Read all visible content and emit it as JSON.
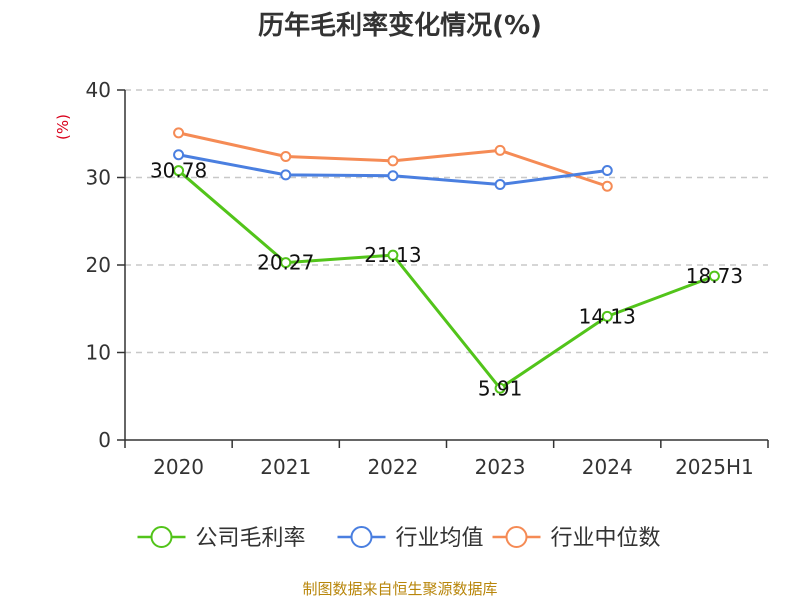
{
  "chart_data": {
    "type": "line",
    "title": "历年毛利率变化情况(%)",
    "ylabel": "(%)",
    "xlabel": "",
    "categories": [
      "2020",
      "2021",
      "2022",
      "2023",
      "2024",
      "2025H1"
    ],
    "ylim": [
      0,
      40
    ],
    "yticks": [
      0,
      10,
      20,
      30,
      40
    ],
    "grid": true,
    "legend_position": "bottom",
    "series": [
      {
        "name": "公司毛利率",
        "color": "#52c41a",
        "values": [
          30.78,
          20.27,
          21.13,
          5.91,
          14.13,
          18.73
        ],
        "labels": [
          "30.78",
          "20.27",
          "21.13",
          "5.91",
          "14.13",
          "18.73"
        ]
      },
      {
        "name": "行业均值",
        "color": "#4a7fe0",
        "values": [
          32.6,
          30.3,
          30.2,
          29.2,
          30.8,
          null
        ]
      },
      {
        "name": "行业中位数",
        "color": "#f58b55",
        "values": [
          35.1,
          32.4,
          31.9,
          33.1,
          29.0,
          null
        ]
      }
    ]
  },
  "footer": {
    "source": "制图数据来自恒生聚源数据库"
  }
}
